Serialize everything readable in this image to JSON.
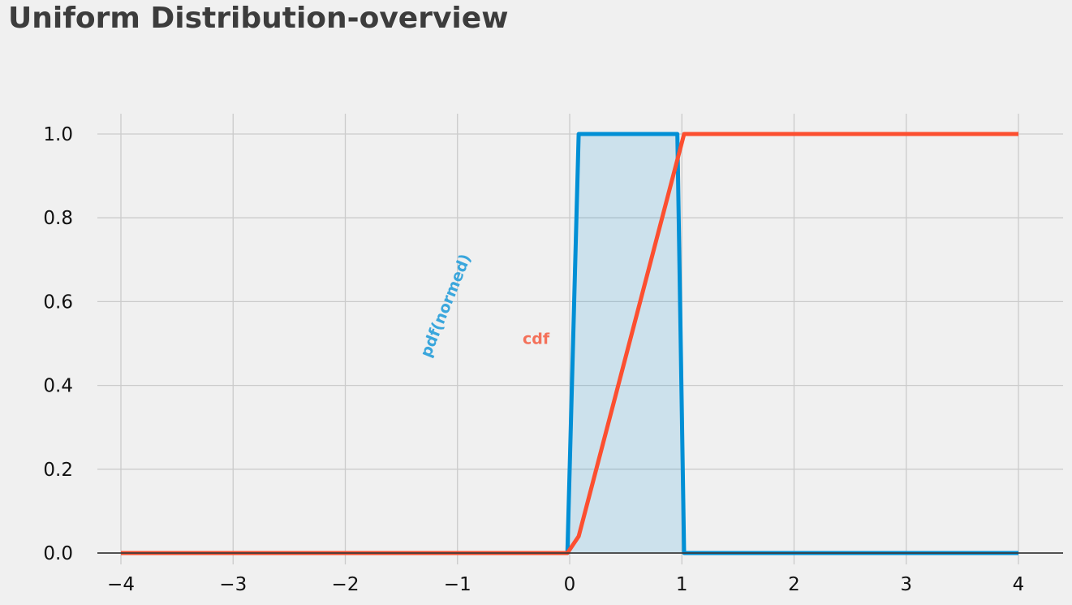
{
  "chart_data": {
    "type": "line",
    "title": "Uniform Distribution-overview",
    "xlim": [
      -4,
      4
    ],
    "ylim": [
      0,
      1
    ],
    "x_ticks": [
      -4,
      -3,
      -2,
      -1,
      0,
      1,
      2,
      3,
      4
    ],
    "x_tick_labels": [
      "−4",
      "−3",
      "−2",
      "−1",
      "0",
      "1",
      "2",
      "3",
      "4"
    ],
    "y_ticks": [
      0.0,
      0.2,
      0.4,
      0.6,
      0.8,
      1.0
    ],
    "y_tick_labels": [
      "0.0",
      "0.2",
      "0.4",
      "0.6",
      "0.8",
      "1.0"
    ],
    "grid": true,
    "series": [
      {
        "name": "pdf(normed)",
        "color": "#008fd5",
        "fill": true,
        "x": [
          -4,
          -0.02,
          0.08,
          0.96,
          1.02,
          4
        ],
        "y": [
          0,
          0,
          1,
          1,
          0,
          0
        ]
      },
      {
        "name": "cdf",
        "color": "#fc4f30",
        "fill": false,
        "x": [
          -4,
          -0.02,
          0.08,
          1.02,
          4
        ],
        "y": [
          0,
          0,
          0.04,
          1,
          1
        ]
      }
    ],
    "annotations": [
      {
        "text": "pdf(normed)",
        "x": -1.1,
        "y": 0.59,
        "rotation": -68,
        "color": "#3aa6dc"
      },
      {
        "text": "cdf",
        "x": -0.3,
        "y": 0.51,
        "rotation": 0,
        "color": "#f4715a"
      }
    ]
  }
}
